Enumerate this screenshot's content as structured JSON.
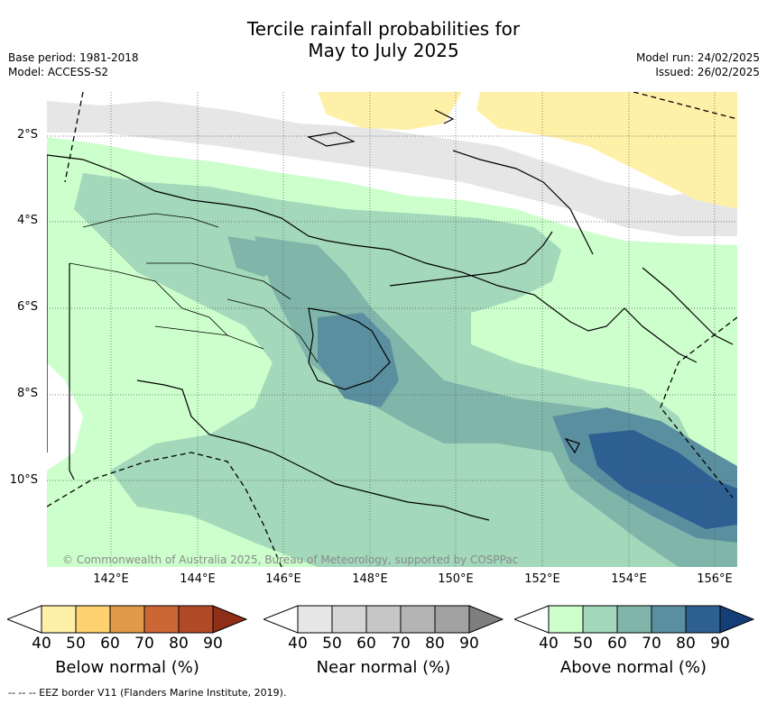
{
  "title_line1": "Tercile rainfall probabilities for",
  "title_line2": "May to July 2025",
  "base_period": "Base period: 1981-2018",
  "model": "Model: ACCESS-S2",
  "model_run": "Model run: 24/02/2025",
  "issued": "Issued: 26/02/2025",
  "copyright": "© Commonwealth of Australia 2025, Bureau of Meteorology, supported by COSPPac",
  "lat_labels": [
    "2°S",
    "4°S",
    "6°S",
    "8°S",
    "10°S"
  ],
  "lon_labels": [
    "142°E",
    "144°E",
    "146°E",
    "148°E",
    "150°E",
    "152°E",
    "154°E",
    "156°E"
  ],
  "legends": [
    {
      "title": "Below normal (%)",
      "ticks": [
        "40",
        "50",
        "60",
        "70",
        "80",
        "90"
      ],
      "colors": [
        "#fff0a8",
        "#fdd070",
        "#e09a48",
        "#cc6634",
        "#b24a28",
        "#8f2f18"
      ]
    },
    {
      "title": "Near normal (%)",
      "ticks": [
        "40",
        "50",
        "60",
        "70",
        "80",
        "90"
      ],
      "colors": [
        "#e6e6e6",
        "#d6d6d6",
        "#c6c6c6",
        "#b4b4b4",
        "#a2a2a2",
        "#7f7f7f"
      ]
    },
    {
      "title": "Above normal (%)",
      "ticks": [
        "40",
        "50",
        "60",
        "70",
        "80",
        "90"
      ],
      "colors": [
        "#ccffcc",
        "#a3d8bb",
        "#80b6aa",
        "#5a8fa0",
        "#2e5f92",
        "#153e78"
      ]
    }
  ],
  "footnote": "--  --  -- EEZ border V11 (Flanders Marine Institute, 2019).",
  "colors": {
    "below_40": "#fff0a8",
    "near_40": "#e6e6e6",
    "above_40": "#ccffcc",
    "above_50": "#a3d8bb",
    "above_60": "#80b6aa",
    "above_70": "#5a8fa0",
    "above_80": "#2e5f92"
  }
}
